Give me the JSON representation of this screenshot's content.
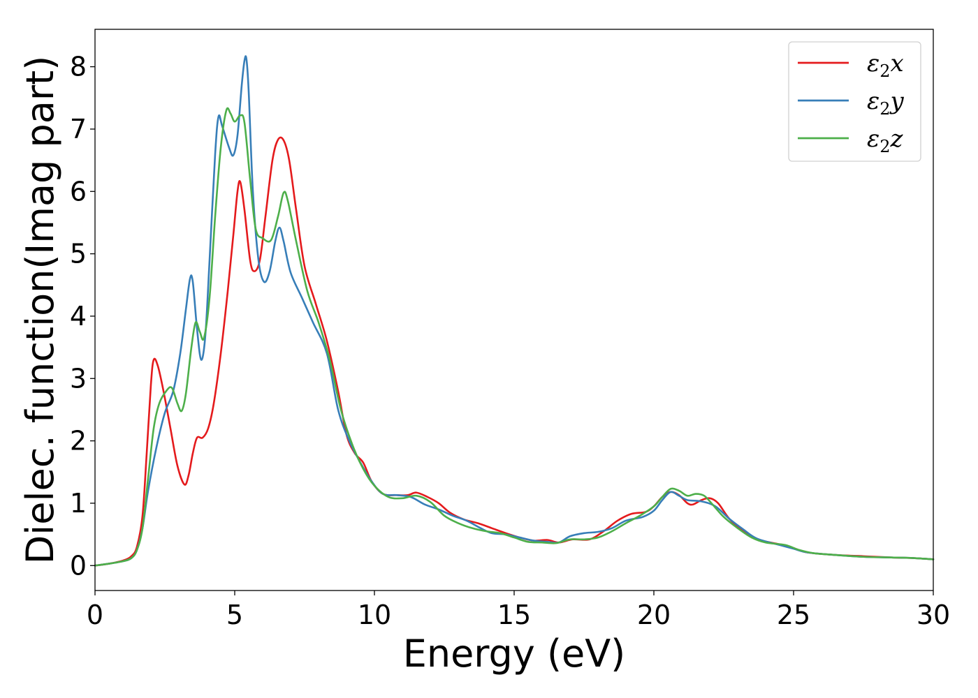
{
  "chart_data": {
    "type": "line",
    "xlabel": "Energy (eV)",
    "ylabel": "Dielec. function(Imag part)",
    "xlim": [
      0,
      30
    ],
    "ylim": [
      -0.4,
      8.6
    ],
    "xticks": [
      0,
      5,
      10,
      15,
      20,
      25,
      30
    ],
    "xtick_labels": [
      "0",
      "5",
      "10",
      "15",
      "20",
      "25",
      "30"
    ],
    "yticks": [
      0,
      1,
      2,
      3,
      4,
      5,
      6,
      7,
      8
    ],
    "ytick_labels": [
      "0",
      "1",
      "2",
      "3",
      "4",
      "5",
      "6",
      "7",
      "8"
    ],
    "grid": false,
    "legend_position": "top-right",
    "series": [
      {
        "name": "ε2x",
        "legend_base": "ε",
        "legend_sub": "2",
        "legend_var": "x",
        "color": "#e41a1c",
        "points": [
          [
            0,
            0
          ],
          [
            0.5,
            0.03
          ],
          [
            1.0,
            0.08
          ],
          [
            1.3,
            0.15
          ],
          [
            1.5,
            0.3
          ],
          [
            1.7,
            0.8
          ],
          [
            1.85,
            1.8
          ],
          [
            2.0,
            2.9
          ],
          [
            2.1,
            3.3
          ],
          [
            2.25,
            3.2
          ],
          [
            2.45,
            2.8
          ],
          [
            2.7,
            2.2
          ],
          [
            2.95,
            1.6
          ],
          [
            3.2,
            1.3
          ],
          [
            3.35,
            1.45
          ],
          [
            3.5,
            1.8
          ],
          [
            3.65,
            2.05
          ],
          [
            3.85,
            2.05
          ],
          [
            4.05,
            2.2
          ],
          [
            4.25,
            2.6
          ],
          [
            4.5,
            3.4
          ],
          [
            4.75,
            4.4
          ],
          [
            4.95,
            5.3
          ],
          [
            5.1,
            6.0
          ],
          [
            5.2,
            6.15
          ],
          [
            5.35,
            5.7
          ],
          [
            5.55,
            4.9
          ],
          [
            5.7,
            4.72
          ],
          [
            5.9,
            4.9
          ],
          [
            6.1,
            5.6
          ],
          [
            6.35,
            6.5
          ],
          [
            6.55,
            6.83
          ],
          [
            6.75,
            6.82
          ],
          [
            6.95,
            6.5
          ],
          [
            7.2,
            5.7
          ],
          [
            7.5,
            4.8
          ],
          [
            7.9,
            4.2
          ],
          [
            8.3,
            3.6
          ],
          [
            8.7,
            2.8
          ],
          [
            9.0,
            2.1
          ],
          [
            9.3,
            1.8
          ],
          [
            9.6,
            1.65
          ],
          [
            9.9,
            1.35
          ],
          [
            10.3,
            1.15
          ],
          [
            10.8,
            1.13
          ],
          [
            11.2,
            1.13
          ],
          [
            11.5,
            1.17
          ],
          [
            11.9,
            1.1
          ],
          [
            12.3,
            1.0
          ],
          [
            12.7,
            0.85
          ],
          [
            13.2,
            0.74
          ],
          [
            13.7,
            0.68
          ],
          [
            14.2,
            0.6
          ],
          [
            14.7,
            0.52
          ],
          [
            15.2,
            0.45
          ],
          [
            15.7,
            0.4
          ],
          [
            16.2,
            0.41
          ],
          [
            16.6,
            0.37
          ],
          [
            17.1,
            0.42
          ],
          [
            17.7,
            0.42
          ],
          [
            18.2,
            0.55
          ],
          [
            18.7,
            0.72
          ],
          [
            19.2,
            0.83
          ],
          [
            19.7,
            0.86
          ],
          [
            20.0,
            0.95
          ],
          [
            20.3,
            1.1
          ],
          [
            20.6,
            1.18
          ],
          [
            20.9,
            1.13
          ],
          [
            21.2,
            1.0
          ],
          [
            21.4,
            0.98
          ],
          [
            21.7,
            1.05
          ],
          [
            22.0,
            1.08
          ],
          [
            22.3,
            1.0
          ],
          [
            22.7,
            0.75
          ],
          [
            23.2,
            0.55
          ],
          [
            23.7,
            0.42
          ],
          [
            24.5,
            0.34
          ],
          [
            25.0,
            0.28
          ],
          [
            25.5,
            0.21
          ],
          [
            26.5,
            0.17
          ],
          [
            27.5,
            0.15
          ],
          [
            28.5,
            0.13
          ],
          [
            29.3,
            0.12
          ],
          [
            30,
            0.1
          ]
        ]
      },
      {
        "name": "ε2y",
        "legend_base": "ε",
        "legend_sub": "2",
        "legend_var": "y",
        "color": "#377eb8",
        "points": [
          [
            0,
            0
          ],
          [
            0.5,
            0.03
          ],
          [
            1.0,
            0.07
          ],
          [
            1.3,
            0.12
          ],
          [
            1.5,
            0.25
          ],
          [
            1.7,
            0.6
          ],
          [
            1.9,
            1.2
          ],
          [
            2.2,
            1.9
          ],
          [
            2.5,
            2.45
          ],
          [
            2.8,
            2.8
          ],
          [
            3.05,
            3.4
          ],
          [
            3.25,
            4.1
          ],
          [
            3.4,
            4.6
          ],
          [
            3.5,
            4.55
          ],
          [
            3.65,
            3.8
          ],
          [
            3.8,
            3.3
          ],
          [
            3.95,
            3.7
          ],
          [
            4.1,
            4.9
          ],
          [
            4.3,
            6.6
          ],
          [
            4.42,
            7.2
          ],
          [
            4.55,
            7.05
          ],
          [
            4.8,
            6.7
          ],
          [
            4.95,
            6.58
          ],
          [
            5.1,
            6.9
          ],
          [
            5.25,
            7.7
          ],
          [
            5.35,
            8.1
          ],
          [
            5.42,
            8.12
          ],
          [
            5.5,
            7.6
          ],
          [
            5.65,
            6.0
          ],
          [
            5.85,
            4.9
          ],
          [
            6.05,
            4.55
          ],
          [
            6.25,
            4.72
          ],
          [
            6.45,
            5.2
          ],
          [
            6.6,
            5.42
          ],
          [
            6.75,
            5.2
          ],
          [
            7.0,
            4.7
          ],
          [
            7.4,
            4.3
          ],
          [
            7.8,
            3.9
          ],
          [
            8.3,
            3.4
          ],
          [
            8.7,
            2.5
          ],
          [
            9.1,
            2.0
          ],
          [
            9.5,
            1.65
          ],
          [
            9.9,
            1.35
          ],
          [
            10.3,
            1.15
          ],
          [
            10.8,
            1.13
          ],
          [
            11.3,
            1.1
          ],
          [
            11.8,
            0.98
          ],
          [
            12.3,
            0.9
          ],
          [
            12.8,
            0.8
          ],
          [
            13.3,
            0.72
          ],
          [
            13.8,
            0.6
          ],
          [
            14.2,
            0.52
          ],
          [
            14.7,
            0.5
          ],
          [
            15.2,
            0.45
          ],
          [
            15.7,
            0.4
          ],
          [
            16.2,
            0.38
          ],
          [
            16.6,
            0.37
          ],
          [
            17.0,
            0.47
          ],
          [
            17.5,
            0.52
          ],
          [
            18.0,
            0.54
          ],
          [
            18.5,
            0.6
          ],
          [
            19.0,
            0.72
          ],
          [
            19.6,
            0.78
          ],
          [
            20.0,
            0.88
          ],
          [
            20.3,
            1.05
          ],
          [
            20.6,
            1.18
          ],
          [
            20.9,
            1.12
          ],
          [
            21.2,
            1.05
          ],
          [
            21.7,
            1.03
          ],
          [
            22.2,
            0.95
          ],
          [
            22.7,
            0.75
          ],
          [
            23.2,
            0.58
          ],
          [
            23.7,
            0.43
          ],
          [
            24.5,
            0.33
          ],
          [
            25.0,
            0.27
          ],
          [
            25.5,
            0.21
          ],
          [
            26.5,
            0.17
          ],
          [
            27.5,
            0.14
          ],
          [
            28.5,
            0.13
          ],
          [
            29.3,
            0.12
          ],
          [
            30,
            0.1
          ]
        ]
      },
      {
        "name": "ε2z",
        "legend_base": "ε",
        "legend_sub": "2",
        "legend_var": "z",
        "color": "#4daf4a",
        "points": [
          [
            0,
            0
          ],
          [
            0.5,
            0.03
          ],
          [
            1.0,
            0.07
          ],
          [
            1.3,
            0.12
          ],
          [
            1.5,
            0.25
          ],
          [
            1.7,
            0.6
          ],
          [
            1.9,
            1.4
          ],
          [
            2.1,
            2.2
          ],
          [
            2.3,
            2.6
          ],
          [
            2.55,
            2.8
          ],
          [
            2.75,
            2.85
          ],
          [
            2.95,
            2.6
          ],
          [
            3.1,
            2.48
          ],
          [
            3.25,
            2.75
          ],
          [
            3.45,
            3.5
          ],
          [
            3.6,
            3.9
          ],
          [
            3.75,
            3.75
          ],
          [
            3.9,
            3.65
          ],
          [
            4.1,
            4.3
          ],
          [
            4.3,
            5.6
          ],
          [
            4.5,
            6.7
          ],
          [
            4.7,
            7.3
          ],
          [
            4.85,
            7.25
          ],
          [
            5.0,
            7.12
          ],
          [
            5.2,
            7.22
          ],
          [
            5.35,
            7.1
          ],
          [
            5.55,
            6.2
          ],
          [
            5.75,
            5.4
          ],
          [
            6.0,
            5.25
          ],
          [
            6.3,
            5.22
          ],
          [
            6.55,
            5.6
          ],
          [
            6.75,
            5.98
          ],
          [
            6.9,
            5.85
          ],
          [
            7.2,
            5.2
          ],
          [
            7.6,
            4.4
          ],
          [
            8.0,
            3.9
          ],
          [
            8.4,
            3.3
          ],
          [
            8.8,
            2.5
          ],
          [
            9.2,
            1.95
          ],
          [
            9.6,
            1.55
          ],
          [
            10.0,
            1.28
          ],
          [
            10.5,
            1.1
          ],
          [
            11.0,
            1.08
          ],
          [
            11.5,
            1.12
          ],
          [
            12.0,
            1.02
          ],
          [
            12.5,
            0.8
          ],
          [
            13.0,
            0.68
          ],
          [
            13.5,
            0.6
          ],
          [
            14.0,
            0.55
          ],
          [
            14.5,
            0.52
          ],
          [
            15.0,
            0.45
          ],
          [
            15.5,
            0.38
          ],
          [
            16.0,
            0.37
          ],
          [
            16.5,
            0.36
          ],
          [
            17.0,
            0.42
          ],
          [
            17.5,
            0.42
          ],
          [
            18.0,
            0.45
          ],
          [
            18.5,
            0.55
          ],
          [
            19.0,
            0.68
          ],
          [
            19.5,
            0.8
          ],
          [
            20.0,
            0.95
          ],
          [
            20.3,
            1.1
          ],
          [
            20.6,
            1.23
          ],
          [
            20.9,
            1.2
          ],
          [
            21.2,
            1.12
          ],
          [
            21.5,
            1.15
          ],
          [
            21.8,
            1.12
          ],
          [
            22.1,
            0.98
          ],
          [
            22.5,
            0.78
          ],
          [
            23.0,
            0.6
          ],
          [
            23.5,
            0.45
          ],
          [
            24.0,
            0.37
          ],
          [
            24.7,
            0.33
          ],
          [
            25.2,
            0.25
          ],
          [
            25.7,
            0.2
          ],
          [
            26.5,
            0.17
          ],
          [
            27.5,
            0.14
          ],
          [
            28.5,
            0.13
          ],
          [
            29.3,
            0.12
          ],
          [
            30,
            0.1
          ]
        ]
      }
    ]
  }
}
